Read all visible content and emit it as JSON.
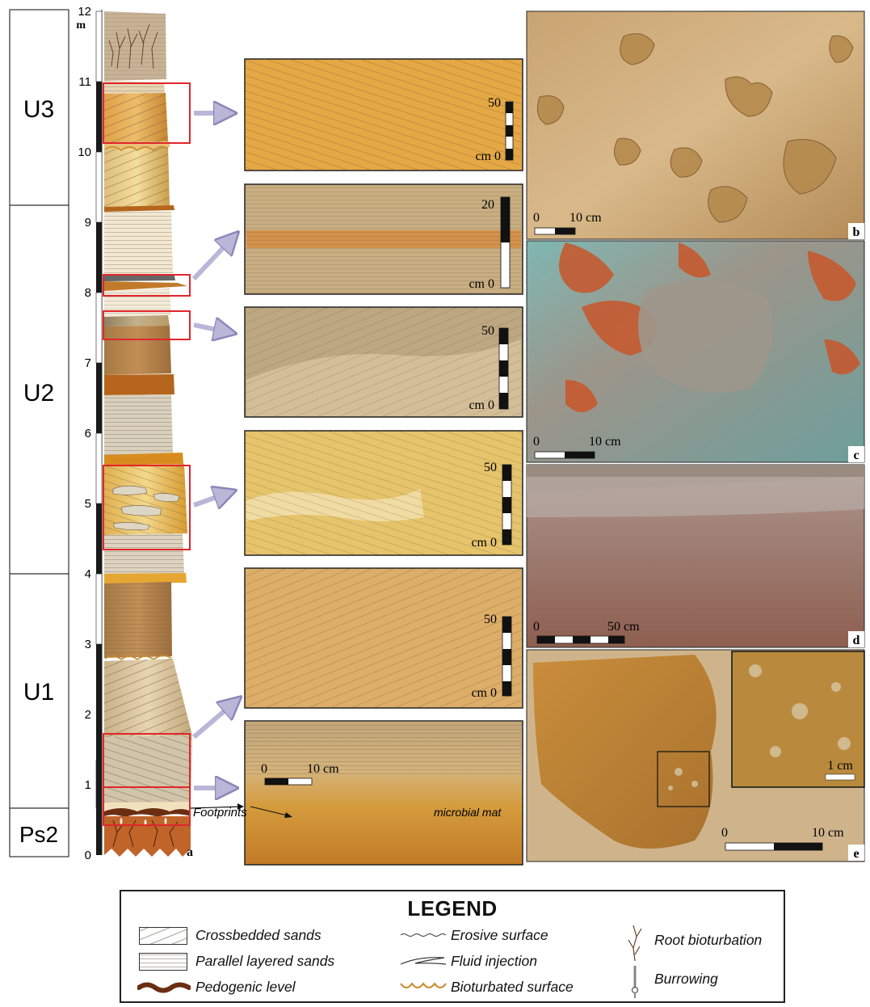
{
  "units": [
    {
      "label": "U3"
    },
    {
      "label": "U2"
    },
    {
      "label": "U1"
    },
    {
      "label": "Ps2"
    }
  ],
  "scale": {
    "unit": "m",
    "ticks": [
      "0",
      "1",
      "2",
      "3",
      "4",
      "5",
      "6",
      "7",
      "8",
      "9",
      "10",
      "11",
      "12"
    ]
  },
  "panel_letters": {
    "a": "a",
    "b": "b",
    "c": "c",
    "d": "d",
    "e": "e"
  },
  "annotations": {
    "footprints": "Footprints",
    "microbial_mat": "microbial mat"
  },
  "photo_scales": [
    {
      "top": "50",
      "bottom": "cm 0"
    },
    {
      "top": "20",
      "bottom": "cm 0"
    },
    {
      "top": "50",
      "bottom": "cm 0"
    },
    {
      "top": "50",
      "bottom": "cm 0"
    },
    {
      "top": "50",
      "bottom": "cm 0"
    },
    {
      "left": "0",
      "right": "10 cm"
    }
  ],
  "right_scales": {
    "b": {
      "left": "0",
      "right": "10 cm"
    },
    "c": {
      "left": "0",
      "right": "10 cm"
    },
    "d": {
      "left": "0",
      "right": "50 cm"
    },
    "e": {
      "left": "0",
      "right": "10 cm",
      "inset": "1 cm"
    }
  },
  "legend": {
    "title": "LEGEND",
    "items": [
      {
        "label": "Crossbedded sands"
      },
      {
        "label": "Parallel layered sands"
      },
      {
        "label": "Pedogenic level"
      },
      {
        "label": "Erosive surface"
      },
      {
        "label": "Fluid injection"
      },
      {
        "label": "Bioturbated surface"
      },
      {
        "label": "Root bioturbation"
      },
      {
        "label": "Burrowing"
      }
    ]
  },
  "colors": {
    "frame_red": "#e0262c",
    "arrow": "#b9b6d8",
    "pedogenic": "#6b2e12",
    "bioturbated": "#c98a2a",
    "sand_light": "#f1e6cf",
    "sand_tan": "#d9b886",
    "sand_orange": "#c7761c"
  }
}
